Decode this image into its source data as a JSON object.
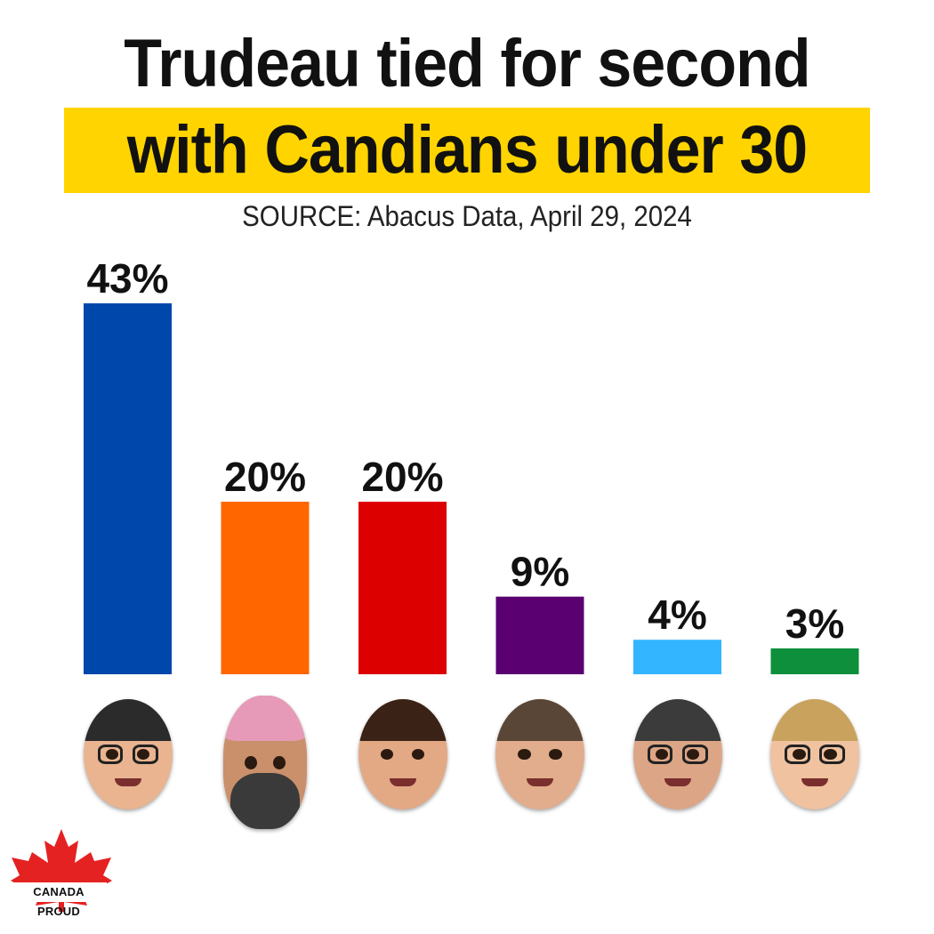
{
  "title": {
    "line1": "Trudeau tied for second",
    "line2": "with Candians under 30",
    "highlight_color": "#ffd400"
  },
  "subtitle": "SOURCE: Abacus Data, April 29, 2024",
  "chart_data": {
    "type": "bar",
    "categories": [
      "",
      "",
      "",
      "",
      "",
      ""
    ],
    "values": [
      43,
      20,
      20,
      9,
      4,
      3
    ],
    "value_labels": [
      "43%",
      "20%",
      "20%",
      "9%",
      "4%",
      "3%"
    ],
    "colors": [
      "#0047ab",
      "#ff6600",
      "#dd0000",
      "#5a0070",
      "#33b5ff",
      "#0d8f3c"
    ],
    "title": "Trudeau tied for second with Candians under 30",
    "xlabel": "",
    "ylabel": "",
    "ylim": [
      0,
      43
    ],
    "grid": false,
    "legend": "none"
  },
  "faces": [
    {
      "icon": "face-1-icon",
      "skin": "#e9b48f",
      "hair": "#2b2b2b",
      "glasses": true,
      "beard": false,
      "turban": false
    },
    {
      "icon": "face-2-icon",
      "skin": "#c9906b",
      "hair": "#e79ab8",
      "glasses": false,
      "beard": true,
      "turban": true
    },
    {
      "icon": "face-3-icon",
      "skin": "#e3a985",
      "hair": "#3a2316",
      "glasses": false,
      "beard": false,
      "turban": false
    },
    {
      "icon": "face-4-icon",
      "skin": "#e2ad8c",
      "hair": "#5a4636",
      "glasses": false,
      "beard": false,
      "turban": false
    },
    {
      "icon": "face-5-icon",
      "skin": "#dca686",
      "hair": "#3b3b3b",
      "glasses": true,
      "beard": false,
      "turban": false
    },
    {
      "icon": "face-6-icon",
      "skin": "#f0c2a0",
      "hair": "#c9a25e",
      "glasses": true,
      "beard": false,
      "turban": false
    }
  ],
  "logo": {
    "text": "CANADA PROUD",
    "icon": "maple-leaf-icon",
    "color": "#e52222"
  }
}
